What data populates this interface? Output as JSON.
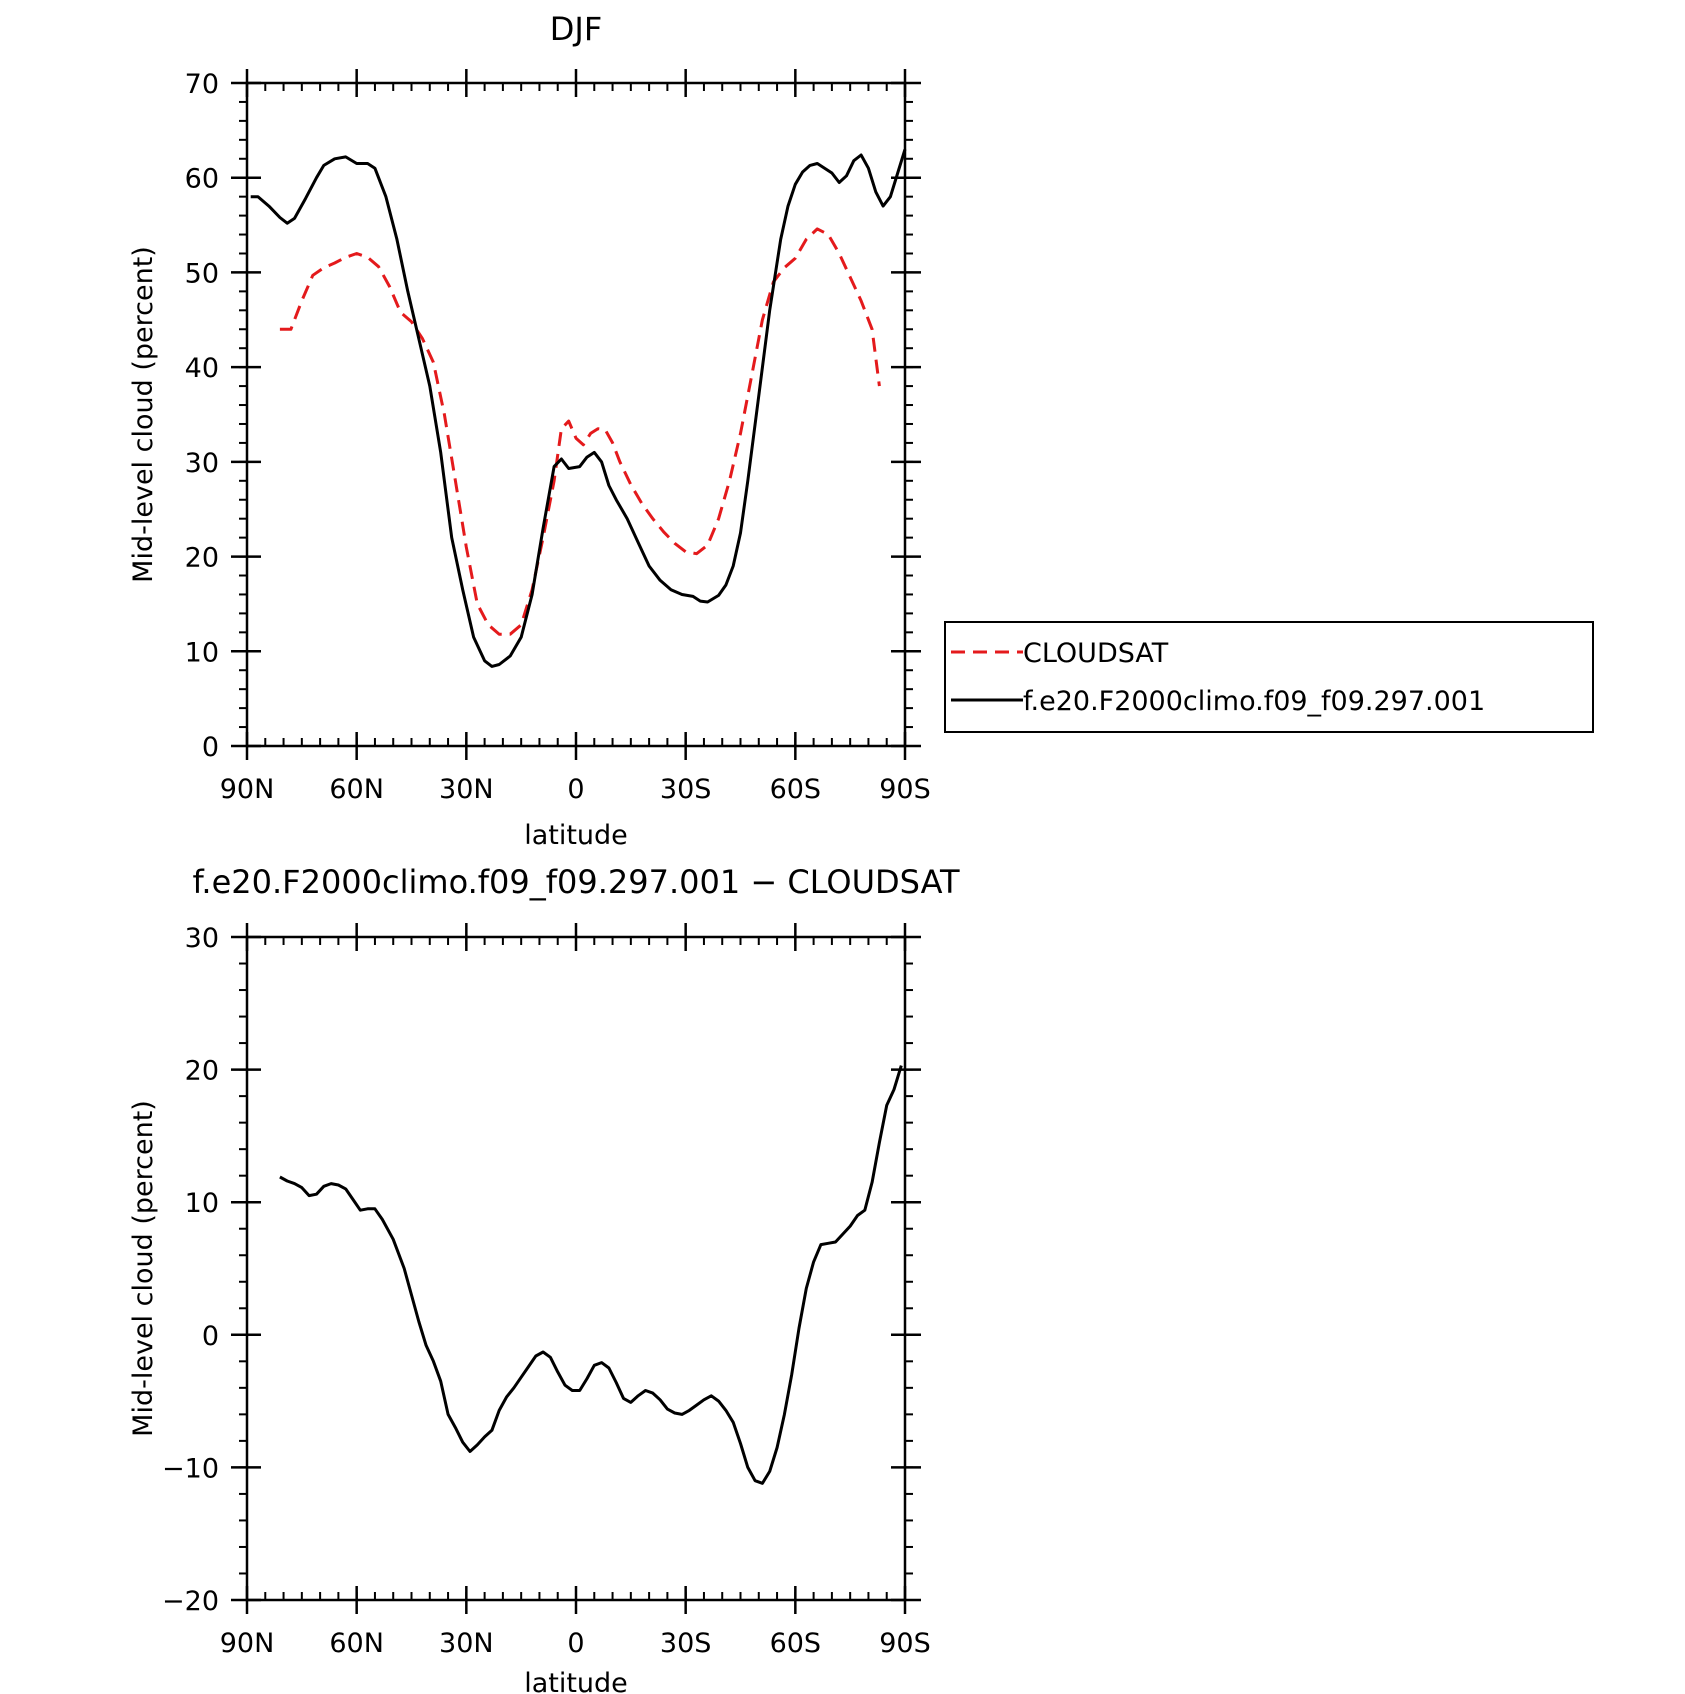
{
  "chart_data": [
    {
      "type": "line",
      "title": "DJF",
      "xlabel": "latitude",
      "ylabel": "Mid-level cloud (percent)",
      "xlim": [
        90,
        -90
      ],
      "ylim": [
        0,
        70
      ],
      "xticks": [
        90,
        60,
        30,
        0,
        -30,
        -60,
        -90
      ],
      "xtick_labels": [
        "90N",
        "60N",
        "30N",
        "0",
        "30S",
        "60S",
        "90S"
      ],
      "yticks": [
        0,
        10,
        20,
        30,
        40,
        50,
        60,
        70
      ],
      "ytick_labels": [
        "0",
        "10",
        "20",
        "30",
        "40",
        "50",
        "60",
        "70"
      ],
      "legend_position": "right",
      "series": [
        {
          "name": "CLOUDSAT",
          "color": "#e41a1c",
          "dash": "dashed",
          "points": [
            [
              81,
              44
            ],
            [
              78,
              44
            ],
            [
              75,
              47
            ],
            [
              72,
              49.7
            ],
            [
              69,
              50.5
            ],
            [
              66,
              51
            ],
            [
              63,
              51.6
            ],
            [
              60,
              52
            ],
            [
              57,
              51.6
            ],
            [
              54,
              50.6
            ],
            [
              51,
              48.5
            ],
            [
              48,
              45.8
            ],
            [
              45,
              44.8
            ],
            [
              42,
              43
            ],
            [
              39,
              40.5
            ],
            [
              36,
              35
            ],
            [
              33,
              28
            ],
            [
              30,
              21
            ],
            [
              27,
              15
            ],
            [
              24,
              12.8
            ],
            [
              21,
              11.8
            ],
            [
              18,
              11.8
            ],
            [
              15,
              12.8
            ],
            [
              12,
              16.5
            ],
            [
              9,
              22
            ],
            [
              6,
              28
            ],
            [
              4,
              33.5
            ],
            [
              2,
              34.3
            ],
            [
              0,
              32.5
            ],
            [
              -2,
              31.8
            ],
            [
              -4,
              33
            ],
            [
              -6,
              33.5
            ],
            [
              -8,
              33.4
            ],
            [
              -10,
              32
            ],
            [
              -12,
              30
            ],
            [
              -15,
              27.6
            ],
            [
              -18,
              25.6
            ],
            [
              -21,
              24
            ],
            [
              -24,
              22.6
            ],
            [
              -27,
              21.4
            ],
            [
              -30,
              20.5
            ],
            [
              -33,
              20.3
            ],
            [
              -36,
              21.2
            ],
            [
              -39,
              24
            ],
            [
              -42,
              28
            ],
            [
              -45,
              33
            ],
            [
              -48,
              39
            ],
            [
              -51,
              45
            ],
            [
              -54,
              49
            ],
            [
              -57,
              50.5
            ],
            [
              -60,
              51.5
            ],
            [
              -63,
              53.5
            ],
            [
              -66,
              54.6
            ],
            [
              -69,
              54
            ],
            [
              -72,
              52
            ],
            [
              -75,
              49.5
            ],
            [
              -78,
              47
            ],
            [
              -81,
              44
            ],
            [
              -83,
              38
            ]
          ]
        },
        {
          "name": "f.e20.F2000climo.f09_f09.297.001",
          "color": "#000000",
          "dash": "solid",
          "points": [
            [
              89,
              58
            ],
            [
              87,
              58
            ],
            [
              84,
              57
            ],
            [
              81,
              55.8
            ],
            [
              79,
              55.2
            ],
            [
              77,
              55.7
            ],
            [
              74,
              57.8
            ],
            [
              71,
              60
            ],
            [
              69,
              61.3
            ],
            [
              66,
              62
            ],
            [
              63,
              62.2
            ],
            [
              60,
              61.5
            ],
            [
              57,
              61.5
            ],
            [
              55,
              61
            ],
            [
              52,
              58
            ],
            [
              49,
              53.5
            ],
            [
              46,
              48
            ],
            [
              43,
              43
            ],
            [
              40,
              38
            ],
            [
              37,
              31
            ],
            [
              34,
              22
            ],
            [
              31,
              16.5
            ],
            [
              28,
              11.5
            ],
            [
              25,
              9
            ],
            [
              23,
              8.4
            ],
            [
              21,
              8.6
            ],
            [
              18,
              9.5
            ],
            [
              15,
              11.5
            ],
            [
              12,
              16
            ],
            [
              9,
              23
            ],
            [
              6,
              29.5
            ],
            [
              4,
              30.3
            ],
            [
              2,
              29.3
            ],
            [
              -1,
              29.5
            ],
            [
              -3,
              30.5
            ],
            [
              -5,
              31
            ],
            [
              -7,
              30
            ],
            [
              -9,
              27.5
            ],
            [
              -11,
              26
            ],
            [
              -14,
              24
            ],
            [
              -17,
              21.5
            ],
            [
              -20,
              19
            ],
            [
              -23,
              17.5
            ],
            [
              -26,
              16.5
            ],
            [
              -29,
              16
            ],
            [
              -32,
              15.8
            ],
            [
              -34,
              15.3
            ],
            [
              -36,
              15.2
            ],
            [
              -39,
              15.9
            ],
            [
              -41,
              17
            ],
            [
              -43,
              19
            ],
            [
              -45,
              22.5
            ],
            [
              -47,
              28
            ],
            [
              -50,
              37
            ],
            [
              -53,
              46
            ],
            [
              -56,
              53.5
            ],
            [
              -58,
              57
            ],
            [
              -60,
              59.3
            ],
            [
              -62,
              60.6
            ],
            [
              -64,
              61.3
            ],
            [
              -66,
              61.5
            ],
            [
              -68,
              61
            ],
            [
              -70,
              60.5
            ],
            [
              -72,
              59.5
            ],
            [
              -74,
              60.2
            ],
            [
              -76,
              61.8
            ],
            [
              -78,
              62.4
            ],
            [
              -80,
              61
            ],
            [
              -82,
              58.5
            ],
            [
              -84,
              57
            ],
            [
              -86,
              58
            ],
            [
              -88,
              60.5
            ],
            [
              -90,
              63
            ]
          ]
        }
      ]
    },
    {
      "type": "line",
      "title": "f.e20.F2000climo.f09_f09.297.001 − CLOUDSAT",
      "xlabel": "latitude",
      "ylabel": "Mid-level cloud (percent)",
      "xlim": [
        90,
        -90
      ],
      "ylim": [
        -20,
        30
      ],
      "xticks": [
        90,
        60,
        30,
        0,
        -30,
        -60,
        -90
      ],
      "xtick_labels": [
        "90N",
        "60N",
        "30N",
        "0",
        "30S",
        "60S",
        "90S"
      ],
      "yticks": [
        -20,
        -10,
        0,
        10,
        20,
        30
      ],
      "ytick_labels": [
        "−20",
        "−10",
        "0",
        "10",
        "20",
        "30"
      ],
      "series": [
        {
          "color": "#000000",
          "dash": "solid",
          "points": [
            [
              81,
              11.9
            ],
            [
              79,
              11.6
            ],
            [
              77,
              11.4
            ],
            [
              75,
              11.1
            ],
            [
              73,
              10.5
            ],
            [
              71,
              10.6
            ],
            [
              69,
              11.2
            ],
            [
              67,
              11.4
            ],
            [
              65,
              11.3
            ],
            [
              63,
              11
            ],
            [
              61,
              10.2
            ],
            [
              59,
              9.4
            ],
            [
              57,
              9.5
            ],
            [
              55,
              9.5
            ],
            [
              53,
              8.7
            ],
            [
              50,
              7.2
            ],
            [
              47,
              5
            ],
            [
              45,
              3
            ],
            [
              43,
              1
            ],
            [
              41,
              -0.8
            ],
            [
              39,
              -2
            ],
            [
              37,
              -3.5
            ],
            [
              35,
              -6
            ],
            [
              33,
              -7
            ],
            [
              31,
              -8.1
            ],
            [
              29,
              -8.8
            ],
            [
              27,
              -8.3
            ],
            [
              25,
              -7.7
            ],
            [
              23,
              -7.2
            ],
            [
              21,
              -5.7
            ],
            [
              19,
              -4.7
            ],
            [
              17,
              -4
            ],
            [
              15,
              -3.2
            ],
            [
              13,
              -2.4
            ],
            [
              11,
              -1.6
            ],
            [
              9,
              -1.3
            ],
            [
              7,
              -1.7
            ],
            [
              5,
              -2.8
            ],
            [
              3,
              -3.8
            ],
            [
              1,
              -4.2
            ],
            [
              -1,
              -4.2
            ],
            [
              -3,
              -3.3
            ],
            [
              -5,
              -2.3
            ],
            [
              -7,
              -2.1
            ],
            [
              -9,
              -2.5
            ],
            [
              -11,
              -3.6
            ],
            [
              -13,
              -4.8
            ],
            [
              -15,
              -5.1
            ],
            [
              -17,
              -4.6
            ],
            [
              -19,
              -4.2
            ],
            [
              -21,
              -4.4
            ],
            [
              -23,
              -4.9
            ],
            [
              -25,
              -5.6
            ],
            [
              -27,
              -5.9
            ],
            [
              -29,
              -6
            ],
            [
              -31,
              -5.7
            ],
            [
              -33,
              -5.3
            ],
            [
              -35,
              -4.9
            ],
            [
              -37,
              -4.6
            ],
            [
              -39,
              -5
            ],
            [
              -41,
              -5.7
            ],
            [
              -43,
              -6.6
            ],
            [
              -45,
              -8.2
            ],
            [
              -47,
              -10
            ],
            [
              -49,
              -11
            ],
            [
              -51,
              -11.2
            ],
            [
              -53,
              -10.3
            ],
            [
              -55,
              -8.5
            ],
            [
              -57,
              -6
            ],
            [
              -59,
              -3
            ],
            [
              -61,
              0.5
            ],
            [
              -63,
              3.5
            ],
            [
              -65,
              5.5
            ],
            [
              -67,
              6.8
            ],
            [
              -69,
              6.9
            ],
            [
              -71,
              7
            ],
            [
              -73,
              7.6
            ],
            [
              -75,
              8.2
            ],
            [
              -77,
              9
            ],
            [
              -79,
              9.4
            ],
            [
              -81,
              11.5
            ],
            [
              -83,
              14.5
            ],
            [
              -85,
              17.3
            ],
            [
              -87,
              18.5
            ],
            [
              -89,
              20.3
            ]
          ]
        }
      ]
    }
  ]
}
